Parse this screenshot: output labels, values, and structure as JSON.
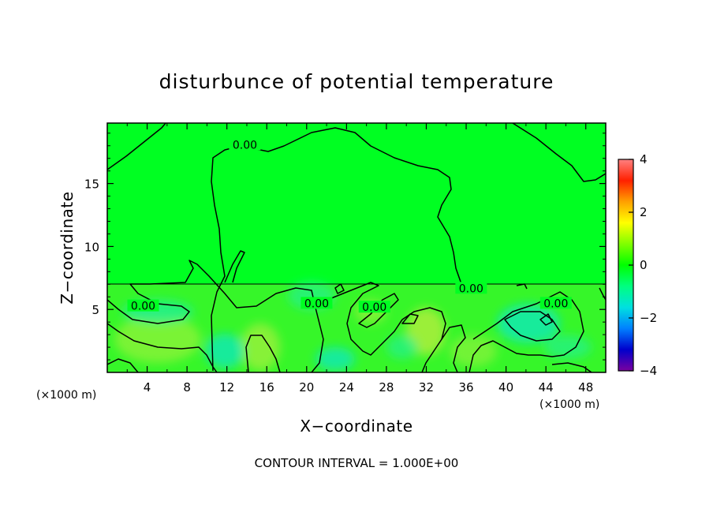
{
  "chart_data": {
    "type": "heatmap",
    "title": "disturbunce of potential temperature",
    "xlabel": "X−coordinate",
    "ylabel": "Z−coordinate",
    "x_unit": "(×1000 m)",
    "y_unit": "(×1000 m)",
    "xlim": [
      0,
      50
    ],
    "ylim": [
      0,
      19.8
    ],
    "x_ticks": [
      4,
      8,
      12,
      16,
      20,
      24,
      28,
      32,
      36,
      40,
      44,
      48
    ],
    "x_tick_labels": [
      "4",
      "8",
      "12",
      "16",
      "20",
      "24",
      "28",
      "32",
      "36",
      "40",
      "44",
      "48"
    ],
    "y_ticks": [
      5,
      10,
      15
    ],
    "y_tick_labels": [
      "5",
      "10",
      "15"
    ],
    "colorbar": {
      "range": [
        -4,
        4
      ],
      "ticks": [
        -4,
        -2,
        0,
        2,
        4
      ],
      "tick_labels": [
        "−4",
        "−2",
        "0",
        "2",
        "4"
      ],
      "colors": [
        "#7a00a0",
        "#0000cc",
        "#0080ff",
        "#00e0e0",
        "#00ff80",
        "#00ff00",
        "#80ff00",
        "#ffff00",
        "#ffa000",
        "#ff2000",
        "#ff8080"
      ]
    },
    "contour_labels": [
      {
        "text": "0.00",
        "x": 13.8,
        "z": 17.9
      },
      {
        "text": "0.00",
        "x": 3.6,
        "z": 5.1
      },
      {
        "text": "0.00",
        "x": 21.0,
        "z": 5.3
      },
      {
        "text": "0.00",
        "x": 26.8,
        "z": 5.0
      },
      {
        "text": "0.00",
        "x": 36.5,
        "z": 6.5
      },
      {
        "text": "0.00",
        "x": 45.0,
        "z": 5.3
      }
    ],
    "contour_interval_text": "CONTOUR INTERVAL = 1.000E+00"
  }
}
